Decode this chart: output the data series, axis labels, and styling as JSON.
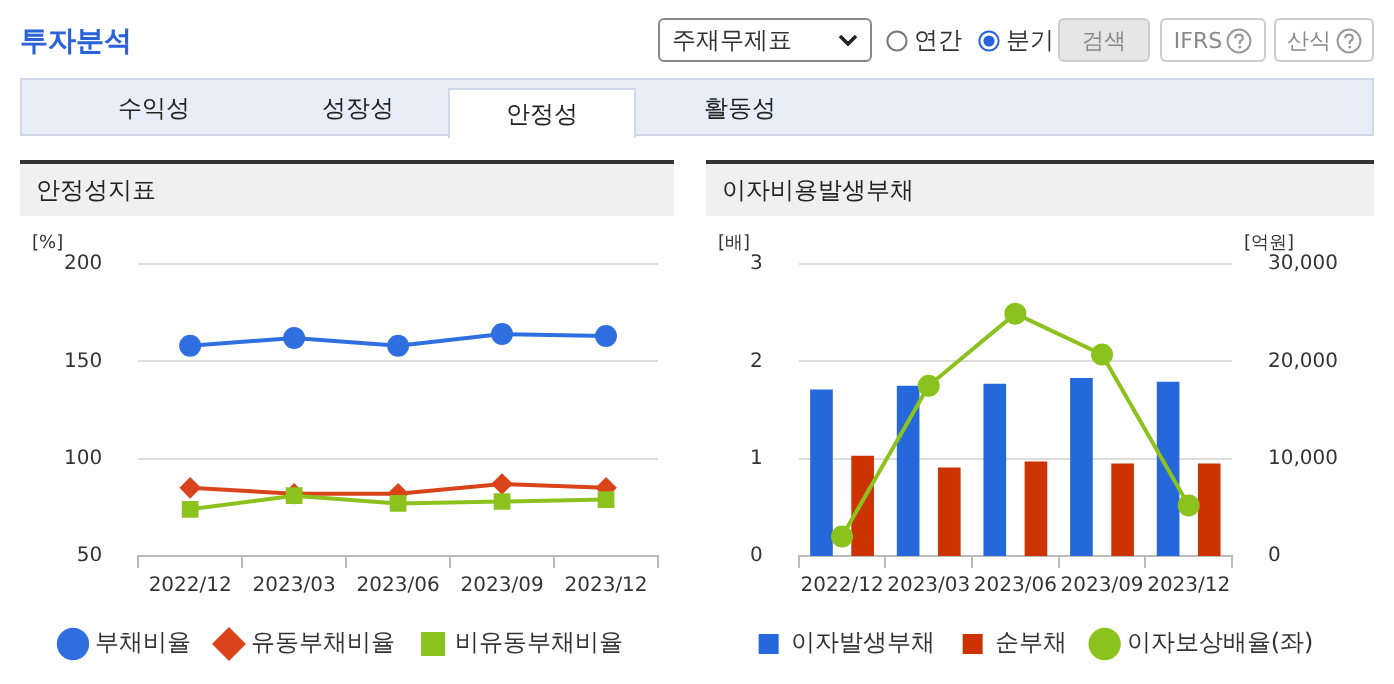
{
  "chart_data": [
    {
      "type": "line",
      "title": "안정성지표",
      "ylabel": "[%]",
      "categories": [
        "2022/12",
        "2023/03",
        "2023/06",
        "2023/09",
        "2023/12"
      ],
      "ylim": [
        50,
        200
      ],
      "yticks": [
        50,
        100,
        150,
        200
      ],
      "grid": "y",
      "legend": "bottom",
      "series": [
        {
          "name": "부채비율",
          "color": "#2f6fe0",
          "marker": "circle",
          "values": [
            158,
            162,
            158,
            164,
            163
          ]
        },
        {
          "name": "유동부채비율",
          "color": "#d9441a",
          "marker": "diamond",
          "values": [
            85,
            82,
            82,
            87,
            85
          ]
        },
        {
          "name": "비유동부채비율",
          "color": "#8cc21e",
          "marker": "square",
          "values": [
            74,
            81,
            77,
            78,
            79
          ]
        }
      ],
      "annotations": [
        "투자분석",
        "주재무제표",
        "연간",
        "분기",
        "검색",
        "IFRS",
        "산식",
        "수익성",
        "성장성",
        "안정성",
        "활동성"
      ]
    },
    {
      "type": "bar",
      "title": "이자비용발생부채",
      "ylabel": "[배]",
      "y2label": "[억원]",
      "categories": [
        "2022/12",
        "2023/03",
        "2023/06",
        "2023/09",
        "2023/12"
      ],
      "ylim": [
        0,
        3
      ],
      "yticks": [
        0,
        1,
        2,
        3
      ],
      "y2lim": [
        0,
        30000
      ],
      "y2ticks": [
        0,
        {
          "value": 10000,
          "label": "10,000"
        },
        {
          "value": 20000,
          "label": "20,000"
        },
        {
          "value": 30000,
          "label": "30,000"
        }
      ],
      "grid": "y",
      "legend": "bottom",
      "series": [
        {
          "name": "이자발생부채",
          "type": "bar",
          "axis": "y2",
          "color": "#2468dc",
          "values": [
            17100,
            17500,
            17700,
            18300,
            17900
          ]
        },
        {
          "name": "순부채",
          "type": "bar",
          "axis": "y2",
          "color": "#cc3300",
          "values": [
            10300,
            9100,
            9700,
            9500,
            9500
          ]
        },
        {
          "name": "이자보상배율(좌)",
          "type": "line",
          "axis": "y",
          "color": "#8cc21e",
          "marker": "circle",
          "values": [
            0.2,
            1.75,
            2.49,
            2.07,
            0.52
          ]
        }
      ]
    }
  ]
}
